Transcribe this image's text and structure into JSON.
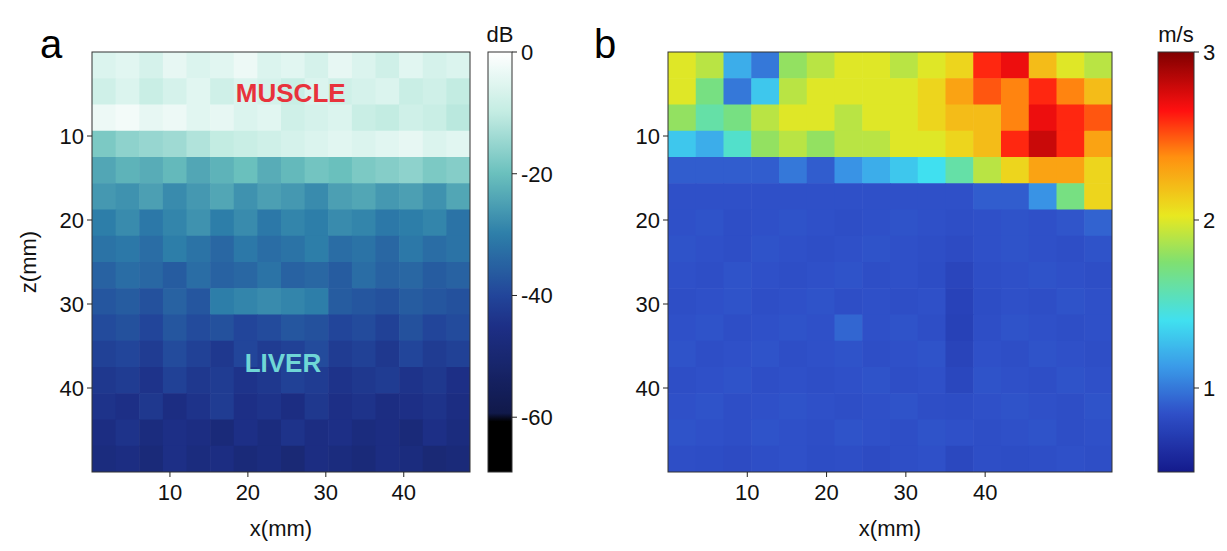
{
  "chart_data": [
    {
      "type": "heatmap",
      "panel": "a",
      "xlabel": "x(mm)",
      "ylabel": "z(mm)",
      "color": "ice",
      "xlim": [
        0,
        48.5
      ],
      "ylim": [
        50,
        0
      ],
      "xticks": [
        10,
        20,
        30,
        40
      ],
      "yticks": [
        10,
        20,
        30,
        40
      ],
      "annotations": [
        "MUSCLE",
        "LIVER"
      ],
      "colorbar": {
        "label": "dB",
        "lim": [
          -69,
          0
        ],
        "ticks": [
          0,
          -20,
          -40,
          -60
        ]
      },
      "cells": [
        [
          -6,
          -5,
          -7,
          -4,
          -6,
          -5,
          -3,
          -6,
          -5,
          -7,
          -4,
          -6,
          -8,
          -5,
          -7,
          -6
        ],
        [
          -8,
          -6,
          -9,
          -7,
          -5,
          -8,
          -6,
          -7,
          -9,
          -6,
          -8,
          -7,
          -6,
          -9,
          -8,
          -10
        ],
        [
          -3,
          -2,
          -4,
          -3,
          -5,
          -4,
          -6,
          -5,
          -8,
          -7,
          -6,
          -9,
          -10,
          -8,
          -9,
          -11
        ],
        [
          -18,
          -16,
          -15,
          -14,
          -12,
          -10,
          -9,
          -8,
          -7,
          -6,
          -5,
          -6,
          -5,
          -4,
          -6,
          -5
        ],
        [
          -24,
          -22,
          -23,
          -21,
          -24,
          -22,
          -20,
          -23,
          -21,
          -19,
          -20,
          -18,
          -17,
          -16,
          -18,
          -17
        ],
        [
          -26,
          -27,
          -25,
          -28,
          -26,
          -24,
          -27,
          -25,
          -26,
          -28,
          -25,
          -24,
          -26,
          -25,
          -27,
          -24
        ],
        [
          -30,
          -28,
          -31,
          -29,
          -27,
          -30,
          -28,
          -31,
          -29,
          -30,
          -28,
          -29,
          -31,
          -30,
          -29,
          -32
        ],
        [
          -32,
          -31,
          -33,
          -30,
          -32,
          -34,
          -31,
          -33,
          -32,
          -30,
          -33,
          -32,
          -34,
          -31,
          -33,
          -32
        ],
        [
          -35,
          -33,
          -34,
          -36,
          -33,
          -35,
          -34,
          -32,
          -35,
          -34,
          -36,
          -33,
          -35,
          -34,
          -36,
          -35
        ],
        [
          -37,
          -36,
          -38,
          -35,
          -37,
          -30,
          -29,
          -28,
          -29,
          -30,
          -36,
          -37,
          -38,
          -36,
          -37,
          -38
        ],
        [
          -39,
          -38,
          -40,
          -37,
          -39,
          -38,
          -40,
          -39,
          -37,
          -38,
          -40,
          -39,
          -41,
          -38,
          -40,
          -39
        ],
        [
          -41,
          -40,
          -42,
          -39,
          -41,
          -43,
          -40,
          -42,
          -41,
          -39,
          -42,
          -41,
          -43,
          -40,
          -42,
          -41
        ],
        [
          -43,
          -42,
          -44,
          -41,
          -43,
          -42,
          -44,
          -43,
          -41,
          -42,
          -44,
          -43,
          -42,
          -44,
          -43,
          -45
        ],
        [
          -44,
          -45,
          -43,
          -46,
          -44,
          -42,
          -45,
          -44,
          -46,
          -43,
          -45,
          -44,
          -46,
          -45,
          -44,
          -46
        ],
        [
          -46,
          -44,
          -47,
          -45,
          -46,
          -48,
          -45,
          -47,
          -44,
          -46,
          -45,
          -47,
          -46,
          -48,
          -45,
          -47
        ],
        [
          -47,
          -46,
          -48,
          -45,
          -47,
          -46,
          -48,
          -47,
          -49,
          -46,
          -47,
          -48,
          -46,
          -47,
          -49,
          -48
        ]
      ]
    },
    {
      "type": "heatmap",
      "panel": "b",
      "xlabel": "x(mm)",
      "color": "jet",
      "xlim": [
        0,
        56
      ],
      "ylim": [
        50,
        0
      ],
      "xticks": [
        10,
        20,
        30,
        40
      ],
      "yticks": [
        10,
        20,
        30,
        40
      ],
      "colorbar": {
        "label": "m/s",
        "lim": [
          0.5,
          3
        ],
        "ticks": [
          1,
          2,
          3
        ]
      },
      "cells": [
        [
          2.0,
          1.9,
          1.2,
          1.0,
          1.8,
          1.9,
          2.0,
          2.0,
          1.9,
          2.0,
          2.1,
          2.6,
          2.7,
          2.2,
          2.0,
          1.9
        ],
        [
          2.0,
          1.7,
          1.0,
          1.3,
          1.9,
          2.0,
          2.0,
          2.0,
          2.0,
          2.1,
          2.3,
          2.5,
          2.4,
          2.6,
          2.4,
          2.2
        ],
        [
          1.8,
          1.6,
          1.7,
          1.9,
          2.0,
          2.0,
          1.9,
          2.0,
          2.0,
          2.1,
          2.2,
          2.2,
          2.4,
          2.7,
          2.6,
          2.5
        ],
        [
          1.3,
          1.2,
          1.5,
          1.8,
          1.9,
          1.8,
          1.9,
          1.9,
          2.0,
          2.0,
          2.1,
          2.2,
          2.6,
          2.8,
          2.6,
          2.3
        ],
        [
          0.9,
          0.9,
          0.9,
          0.9,
          1.0,
          0.9,
          1.1,
          1.2,
          1.3,
          1.4,
          1.6,
          1.9,
          2.1,
          2.3,
          2.3,
          2.1
        ],
        [
          0.85,
          0.85,
          0.85,
          0.85,
          0.85,
          0.85,
          0.85,
          0.85,
          0.85,
          0.85,
          0.85,
          0.9,
          0.9,
          1.1,
          1.7,
          2.1
        ],
        [
          0.85,
          0.86,
          0.84,
          0.85,
          0.86,
          0.85,
          0.84,
          0.85,
          0.86,
          0.85,
          0.84,
          0.85,
          0.86,
          0.85,
          0.87,
          0.92
        ],
        [
          0.86,
          0.85,
          0.84,
          0.86,
          0.85,
          0.84,
          0.85,
          0.86,
          0.85,
          0.84,
          0.82,
          0.85,
          0.86,
          0.85,
          0.84,
          0.86
        ],
        [
          0.85,
          0.84,
          0.86,
          0.85,
          0.84,
          0.85,
          0.86,
          0.84,
          0.85,
          0.83,
          0.78,
          0.84,
          0.85,
          0.86,
          0.85,
          0.84
        ],
        [
          0.84,
          0.85,
          0.86,
          0.84,
          0.85,
          0.86,
          0.84,
          0.85,
          0.84,
          0.85,
          0.76,
          0.83,
          0.85,
          0.84,
          0.86,
          0.85
        ],
        [
          0.85,
          0.86,
          0.84,
          0.85,
          0.86,
          0.85,
          0.93,
          0.85,
          0.86,
          0.84,
          0.75,
          0.84,
          0.86,
          0.85,
          0.84,
          0.85
        ],
        [
          0.86,
          0.84,
          0.85,
          0.86,
          0.84,
          0.85,
          0.86,
          0.84,
          0.85,
          0.86,
          0.77,
          0.85,
          0.84,
          0.86,
          0.85,
          0.84
        ],
        [
          0.84,
          0.85,
          0.86,
          0.84,
          0.85,
          0.84,
          0.85,
          0.86,
          0.84,
          0.85,
          0.79,
          0.86,
          0.85,
          0.84,
          0.86,
          0.85
        ],
        [
          0.85,
          0.86,
          0.84,
          0.85,
          0.86,
          0.85,
          0.84,
          0.85,
          0.86,
          0.84,
          0.83,
          0.85,
          0.86,
          0.85,
          0.84,
          0.86
        ],
        [
          0.86,
          0.85,
          0.84,
          0.86,
          0.85,
          0.84,
          0.86,
          0.85,
          0.84,
          0.86,
          0.85,
          0.84,
          0.85,
          0.86,
          0.84,
          0.85
        ],
        [
          0.84,
          0.83,
          0.82,
          0.84,
          0.85,
          0.83,
          0.84,
          0.82,
          0.84,
          0.85,
          0.8,
          0.84,
          0.83,
          0.84,
          0.85,
          0.84
        ]
      ]
    }
  ]
}
